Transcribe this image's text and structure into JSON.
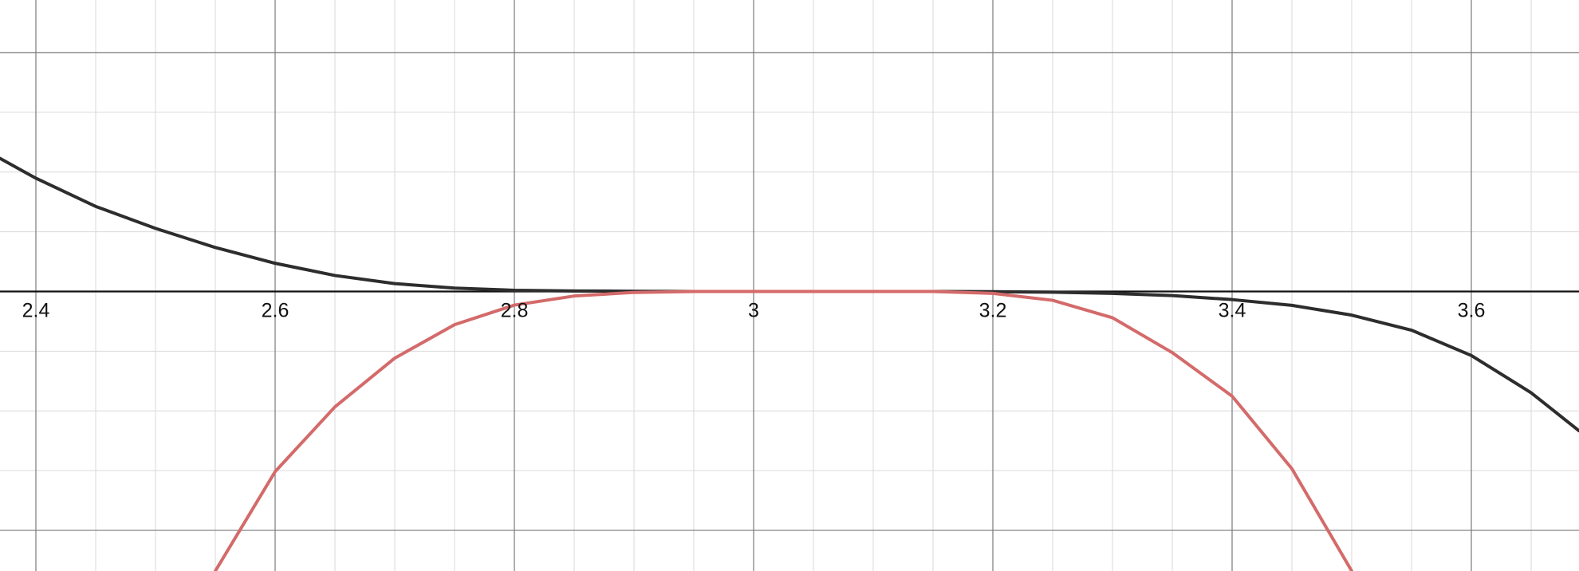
{
  "chart_data": {
    "type": "line",
    "title": "",
    "xlabel": "",
    "ylabel": "",
    "xlim": [
      2.37,
      3.69
    ],
    "ylim": [
      -0.000117,
      0.000122
    ],
    "grid": true,
    "x_ticks": [
      "2.4",
      "2.6",
      "2.8",
      "3",
      "3.2",
      "3.4",
      "3.6"
    ],
    "series": [
      {
        "color": "#2d2d2d",
        "x": [
          2.37,
          2.4,
          2.45,
          2.5,
          2.55,
          2.6,
          2.65,
          2.7,
          2.75,
          2.8,
          2.85,
          2.9,
          2.95,
          3.0,
          3.05,
          3.1,
          3.15,
          3.2,
          3.25,
          3.3,
          3.35,
          3.4,
          3.45,
          3.5,
          3.55,
          3.6,
          3.65,
          3.69
        ],
        "y": [
          5.57e-05,
          4.74e-05,
          3.56e-05,
          2.64e-05,
          1.84e-05,
          1.18e-05,
          6.7e-06,
          3.3e-06,
          1.4e-06,
          5e-07,
          2e-07,
          1e-07,
          0.0,
          0.0,
          0.0,
          0.0,
          0.0,
          -1e-07,
          -3e-07,
          -8e-07,
          -1.7e-06,
          -3.4e-06,
          -5.8e-06,
          -9.9e-06,
          -1.62e-05,
          -2.68e-05,
          -4.24e-05,
          -5.83e-05
        ]
      },
      {
        "color": "#d46a6a",
        "x": [
          2.55,
          2.6,
          2.65,
          2.7,
          2.75,
          2.8,
          2.85,
          2.9,
          2.95,
          3.0,
          3.05,
          3.1,
          3.15,
          3.2,
          3.25,
          3.3,
          3.35,
          3.4,
          3.45,
          3.5
        ],
        "y": [
          -0.000117,
          -7.54e-05,
          -4.83e-05,
          -2.79e-05,
          -1.39e-05,
          -5.7e-06,
          -1.9e-06,
          -4e-07,
          0.0,
          0.0,
          0.0,
          0.0,
          0.0,
          -8e-07,
          -3.7e-06,
          -1.1e-05,
          -2.56e-05,
          -4.38e-05,
          -7.42e-05,
          -0.000117
        ]
      }
    ]
  }
}
